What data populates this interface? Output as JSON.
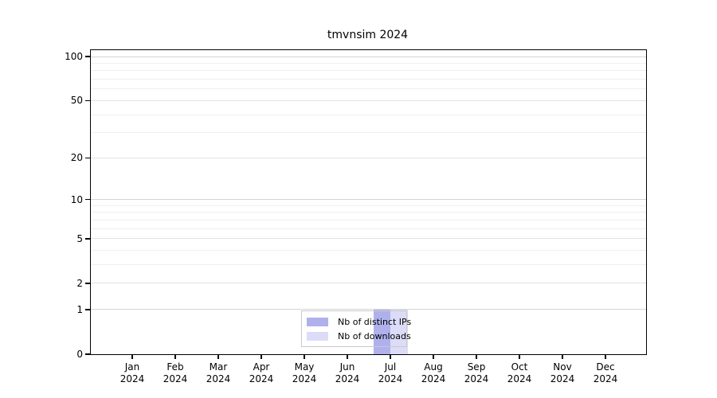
{
  "title": "tmvnsim 2024",
  "chart_data": {
    "type": "bar",
    "title": "tmvnsim 2024",
    "categories": [
      "Jan 2024",
      "Feb 2024",
      "Mar 2024",
      "Apr 2024",
      "May 2024",
      "Jun 2024",
      "Jul 2024",
      "Aug 2024",
      "Sep 2024",
      "Oct 2024",
      "Nov 2024",
      "Dec 2024"
    ],
    "series": [
      {
        "name": "Nb of distinct IPs",
        "color": "#b0b0ec",
        "values": [
          0,
          0,
          0,
          0,
          0,
          0,
          1,
          0,
          0,
          0,
          0,
          0
        ]
      },
      {
        "name": "Nb of downloads",
        "color": "#dcdcf8",
        "values": [
          0,
          0,
          0,
          0,
          0,
          0,
          1,
          0,
          0,
          0,
          0,
          0
        ]
      }
    ],
    "xlabel": "",
    "ylabel": "",
    "y_scale": "log1p",
    "y_ticks": [
      0,
      1,
      2,
      5,
      10,
      20,
      50,
      100
    ],
    "ylim": [
      0,
      110
    ],
    "grid": true,
    "legend_position": "bottom-center-inside"
  },
  "colors": {
    "bar_distinct_ips": "#b0b0ec",
    "bar_downloads": "#dcdcf8",
    "axis": "#000000",
    "gridline_major": "#d4d4d4",
    "gridline_minor": "#efefef",
    "legend_border": "#c9c9c9",
    "background": "#ffffff"
  }
}
